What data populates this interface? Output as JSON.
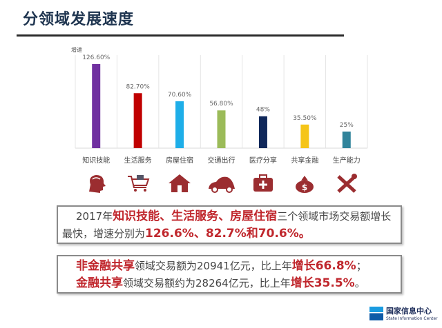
{
  "title": "分领域发展速度",
  "chart_data": {
    "type": "bar",
    "ylabel": "增速",
    "categories": [
      "知识技能",
      "生活服务",
      "房屋住宿",
      "交通出行",
      "医疗分享",
      "共享金融",
      "生产能力"
    ],
    "values": [
      126.6,
      82.7,
      70.6,
      56.8,
      48,
      35.5,
      25
    ],
    "data_labels": [
      "126.60%",
      "82.70%",
      "70.60%",
      "56.80%",
      "48%",
      "35.50%",
      "25%"
    ],
    "colors": [
      "#7030a0",
      "#c00000",
      "#1eaee8",
      "#9bbb59",
      "#10285a",
      "#f5c518",
      "#31849b"
    ],
    "ylim": [
      0,
      140
    ],
    "grid": "vertical separators"
  },
  "icons": [
    "head-brain-icon",
    "shopping-cart-icon",
    "house-icon",
    "car-icon",
    "medical-kit-icon",
    "money-bag-icon",
    "tools-icon"
  ],
  "icon_color": "#9b2d30",
  "box1": {
    "p1": "2017年",
    "h1": "知识技能、生活服务、房屋住宿",
    "p2": "三个领域市场交易额增长最快，增速分别为",
    "h2": "126.6%、82.7%和70.6%。"
  },
  "box2": {
    "l1_h1": "非金融共享",
    "l1_p": "领域交易额为20941亿元，比上年",
    "l1_h2": "增长66.8%",
    "l1_end": "；",
    "l2_h1": "金融共享",
    "l2_p": "领域交易额约为28264亿元，比上年",
    "l2_h2": "增长35.5%",
    "l2_end": "。"
  },
  "logo": {
    "cn": "国家信息中心",
    "en": "State Information Center"
  }
}
